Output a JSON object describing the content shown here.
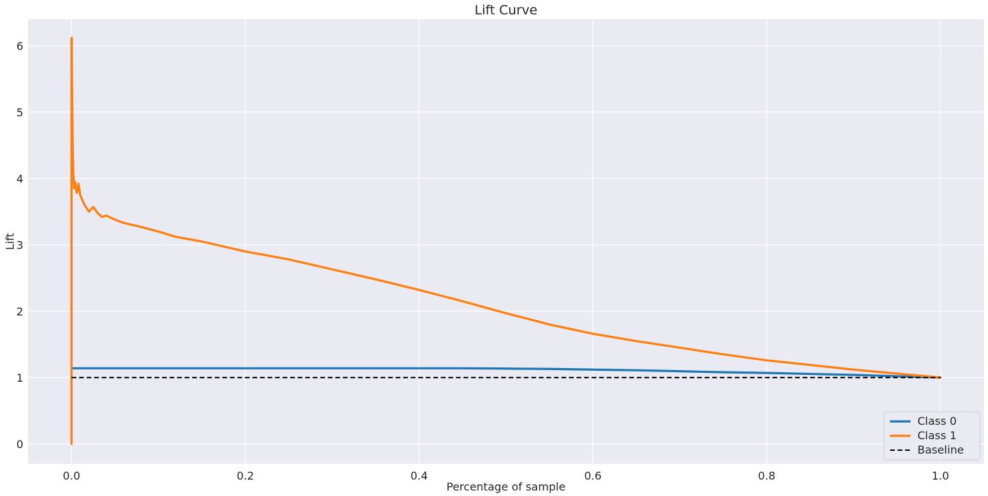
{
  "chart_data": {
    "type": "line",
    "title": "Lift Curve",
    "xlabel": "Percentage of sample",
    "ylabel": "Lift",
    "xlim": [
      -0.05,
      1.05
    ],
    "ylim": [
      -0.3,
      6.4
    ],
    "x_ticks": [
      0.0,
      0.2,
      0.4,
      0.6,
      0.8,
      1.0
    ],
    "x_tick_labels": [
      "0.0",
      "0.2",
      "0.4",
      "0.6",
      "0.8",
      "1.0"
    ],
    "y_ticks": [
      0,
      1,
      2,
      3,
      4,
      5,
      6
    ],
    "y_tick_labels": [
      "0",
      "1",
      "2",
      "3",
      "4",
      "5",
      "6"
    ],
    "grid": true,
    "legend_position": "bottom-right",
    "series": [
      {
        "name": "Class 0",
        "color": "#1f77b4",
        "style": "solid",
        "x": [
          0.0,
          0.1,
          0.2,
          0.3,
          0.4,
          0.45,
          0.5,
          0.55,
          0.6,
          0.65,
          0.7,
          0.75,
          0.8,
          0.85,
          0.9,
          0.95,
          1.0
        ],
        "y": [
          1.14,
          1.14,
          1.14,
          1.14,
          1.14,
          1.14,
          1.135,
          1.13,
          1.12,
          1.11,
          1.095,
          1.08,
          1.07,
          1.055,
          1.04,
          1.02,
          1.0
        ]
      },
      {
        "name": "Class 1",
        "color": "#ff7f0e",
        "style": "solid",
        "x": [
          0.0,
          0.0,
          0.0003,
          0.0006,
          0.001,
          0.0015,
          0.002,
          0.003,
          0.004,
          0.006,
          0.008,
          0.01,
          0.015,
          0.02,
          0.025,
          0.03,
          0.035,
          0.04,
          0.05,
          0.06,
          0.08,
          0.1,
          0.12,
          0.15,
          0.2,
          0.25,
          0.3,
          0.35,
          0.4,
          0.45,
          0.5,
          0.55,
          0.6,
          0.65,
          0.7,
          0.75,
          0.8,
          0.85,
          0.9,
          0.95,
          1.0
        ],
        "y": [
          0.0,
          6.1,
          6.12,
          5.4,
          4.9,
          4.4,
          4.1,
          3.85,
          3.95,
          3.78,
          3.92,
          3.75,
          3.6,
          3.5,
          3.57,
          3.48,
          3.42,
          3.44,
          3.38,
          3.33,
          3.27,
          3.2,
          3.12,
          3.05,
          2.9,
          2.78,
          2.63,
          2.48,
          2.32,
          2.15,
          1.97,
          1.8,
          1.66,
          1.55,
          1.45,
          1.35,
          1.26,
          1.19,
          1.12,
          1.06,
          1.0
        ]
      },
      {
        "name": "Baseline",
        "color": "#000000",
        "style": "dashed",
        "x": [
          0.0,
          1.0
        ],
        "y": [
          1.0,
          1.0
        ]
      }
    ]
  }
}
